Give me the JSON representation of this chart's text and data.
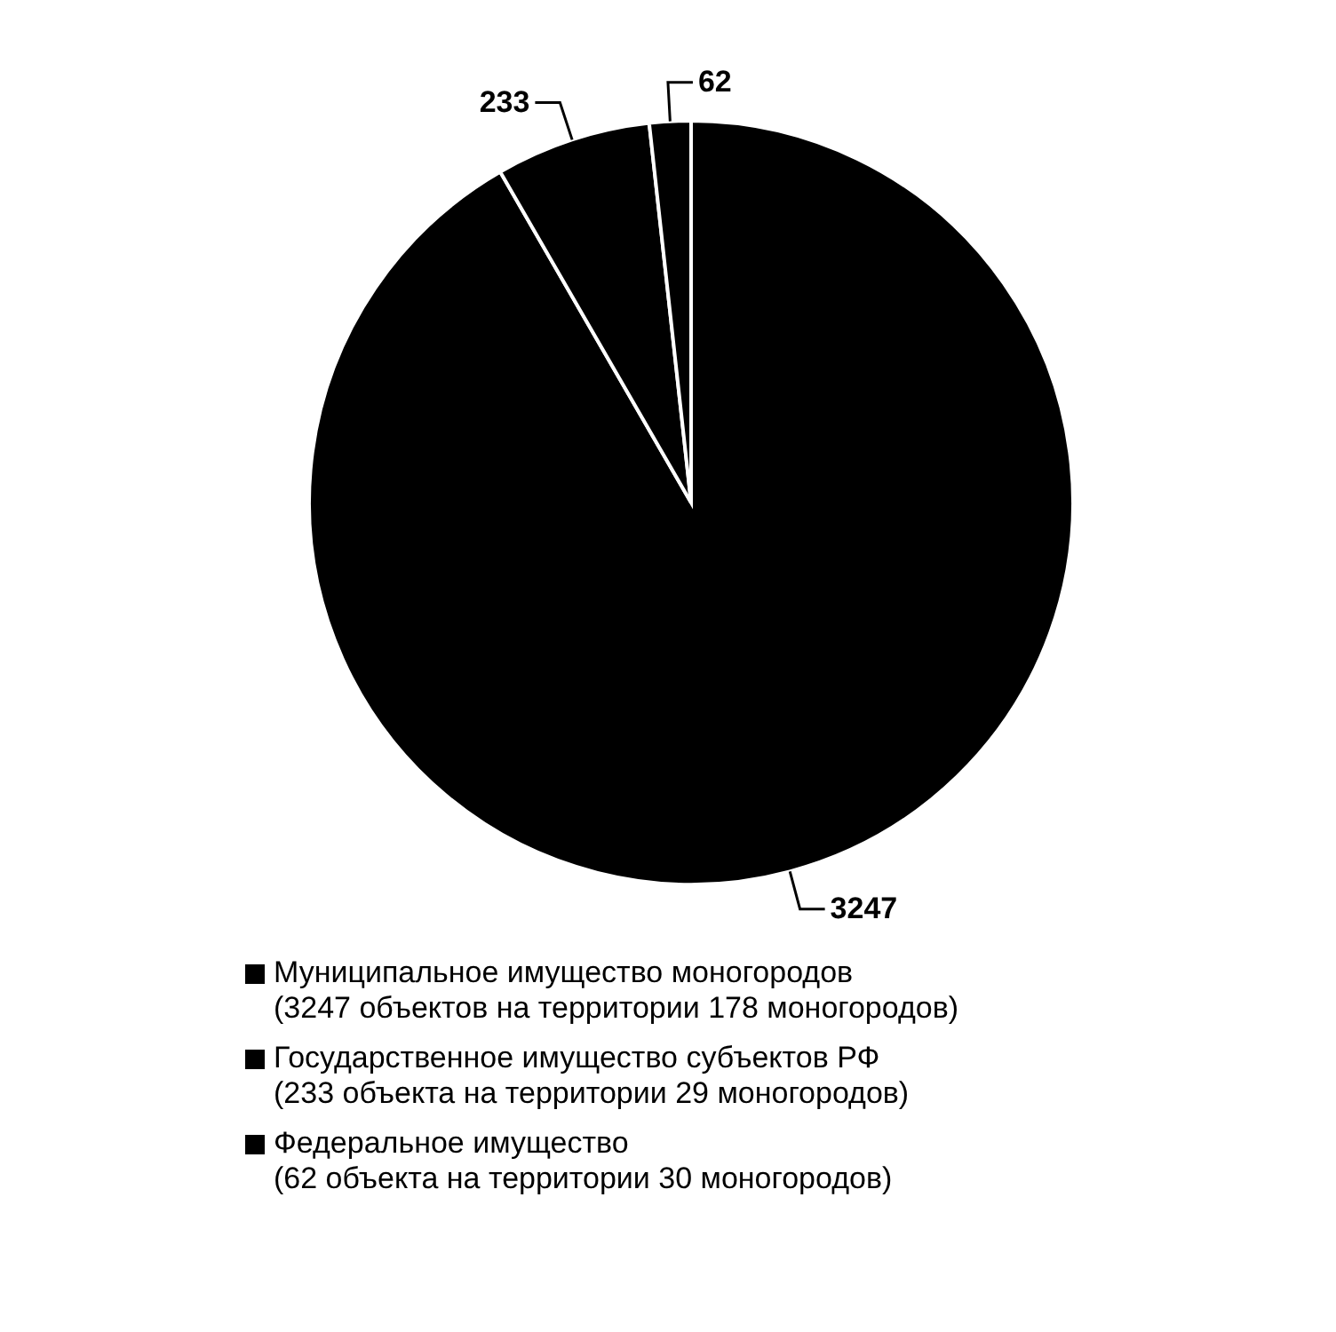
{
  "chart_data": {
    "type": "pie",
    "categories": [
      "Муниципальное имущество моногородов\n(3247 объектов на территории 178 моногородов)",
      "Государственное имущество субъектов РФ\n(233 объекта на территории 29 моногородов)",
      "Федеральное имущество\n(62 объекта на территории 30 моногородов)"
    ],
    "values": [
      3247,
      233,
      62
    ],
    "colors": [
      "#000000",
      "#000000",
      "#000000"
    ],
    "data_labels": true,
    "legend": "bottom"
  }
}
